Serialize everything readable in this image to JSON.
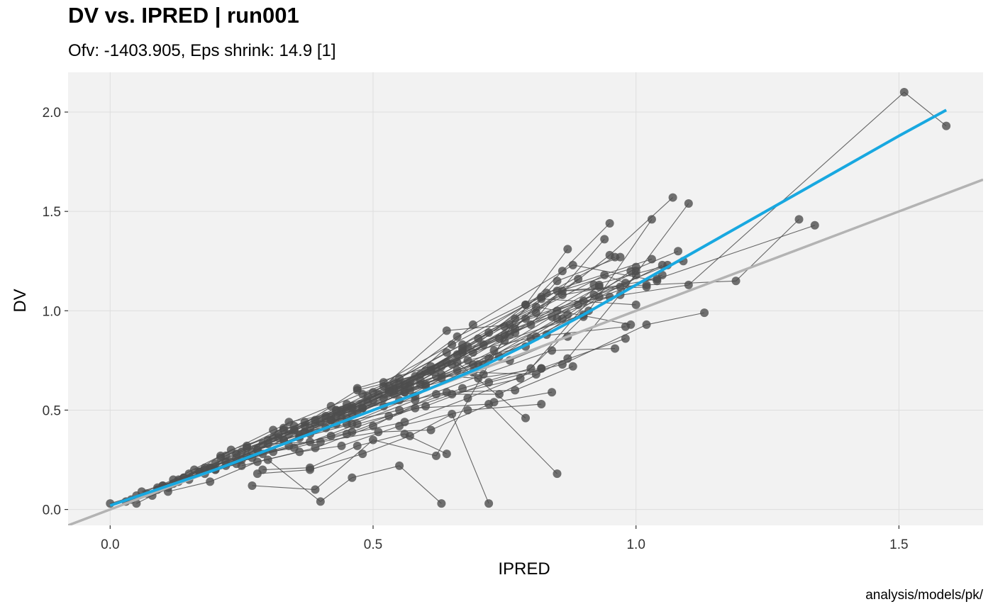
{
  "chart_data": {
    "type": "scatter",
    "title": "DV vs. IPRED | run001",
    "subtitle": "Ofv: -1403.905, Eps shrink: 14.9 [1]",
    "caption": "analysis/models/pk/",
    "xlabel": "IPRED",
    "ylabel": "DV",
    "xlim": [
      -0.08,
      1.66
    ],
    "ylim": [
      -0.08,
      2.2
    ],
    "xticks": [
      0.0,
      0.5,
      1.0,
      1.5
    ],
    "xtick_labels": [
      "0.0",
      "0.5",
      "1.0",
      "1.5"
    ],
    "yticks": [
      0.0,
      0.5,
      1.0,
      1.5,
      2.0
    ],
    "ytick_labels": [
      "0.0",
      "0.5",
      "1.0",
      "1.5",
      "2.0"
    ],
    "grid": true,
    "colors": {
      "panel": "#f2f2f2",
      "grid": "#dedede",
      "points": "#4d4d4d",
      "identity_line": "#b3b3b3",
      "smooth_line": "#18a8e0"
    },
    "identity_line": {
      "x": [
        -0.08,
        1.66
      ],
      "y": [
        -0.08,
        1.66
      ]
    },
    "smooth": {
      "x": [
        0.0,
        0.1,
        0.2,
        0.3,
        0.4,
        0.5,
        0.6,
        0.7,
        0.8,
        0.9,
        1.0,
        1.1,
        1.2,
        1.3,
        1.4,
        1.5,
        1.59
      ],
      "y": [
        0.02,
        0.11,
        0.2,
        0.3,
        0.4,
        0.5,
        0.6,
        0.71,
        0.84,
        0.98,
        1.13,
        1.28,
        1.43,
        1.58,
        1.73,
        1.88,
        2.01
      ]
    },
    "individuals": [
      {
        "x": [
          0.0,
          0.05,
          0.12,
          0.21,
          0.31,
          0.42,
          0.55,
          0.67,
          0.79,
          0.87
        ],
        "y": [
          0.03,
          0.07,
          0.15,
          0.27,
          0.4,
          0.52,
          0.66,
          0.83,
          1.03,
          1.31
        ]
      },
      {
        "x": [
          0.05,
          0.11,
          0.2,
          0.3,
          0.39,
          0.52,
          0.64,
          0.76,
          0.86,
          0.95
        ],
        "y": [
          0.03,
          0.11,
          0.2,
          0.33,
          0.45,
          0.62,
          0.9,
          0.93,
          1.2,
          1.44
        ]
      },
      {
        "x": [
          0.04,
          0.1,
          0.19,
          0.28,
          0.38,
          0.48,
          0.6,
          0.72,
          0.85,
          0.93
        ],
        "y": [
          0.05,
          0.12,
          0.21,
          0.3,
          0.38,
          0.51,
          0.62,
          0.76,
          0.96,
          1.13
        ]
      },
      {
        "x": [
          0.07,
          0.13,
          0.22,
          0.33,
          0.42,
          0.55,
          0.66,
          0.8,
          0.91,
          1.03
        ],
        "y": [
          0.08,
          0.14,
          0.24,
          0.35,
          0.47,
          0.55,
          0.7,
          0.86,
          1.0,
          1.46
        ]
      },
      {
        "x": [
          0.06,
          0.14,
          0.25,
          0.35,
          0.46,
          0.57,
          0.69,
          0.81,
          0.95,
          1.07
        ],
        "y": [
          0.09,
          0.16,
          0.29,
          0.4,
          0.51,
          0.62,
          0.79,
          0.99,
          1.28,
          1.57
        ]
      },
      {
        "x": [
          0.08,
          0.15,
          0.24,
          0.36,
          0.45,
          0.58,
          0.7,
          0.83,
          0.97,
          1.1
        ],
        "y": [
          0.07,
          0.15,
          0.23,
          0.37,
          0.43,
          0.57,
          0.73,
          0.88,
          1.08,
          1.54
        ]
      },
      {
        "x": [
          0.09,
          0.17,
          0.27,
          0.37,
          0.47,
          0.6,
          0.73,
          0.86,
          0.99,
          1.08
        ],
        "y": [
          0.11,
          0.19,
          0.29,
          0.39,
          0.49,
          0.63,
          0.8,
          0.96,
          1.2,
          1.3
        ]
      },
      {
        "x": [
          0.03,
          0.09,
          0.18,
          0.27,
          0.36,
          0.46,
          0.58,
          0.71,
          0.84,
          0.96
        ],
        "y": [
          0.04,
          0.1,
          0.18,
          0.26,
          0.36,
          0.43,
          0.55,
          0.68,
          0.8,
          0.81
        ]
      },
      {
        "x": [
          0.1,
          0.18,
          0.26,
          0.34,
          0.44,
          0.56,
          0.68,
          0.79,
          0.93,
          1.05
        ],
        "y": [
          0.12,
          0.21,
          0.31,
          0.38,
          0.46,
          0.59,
          0.75,
          0.82,
          1.07,
          1.23
        ]
      },
      {
        "x": [
          0.12,
          0.2,
          0.29,
          0.38,
          0.47,
          0.6,
          0.72,
          0.86,
          1.02,
          1.13
        ],
        "y": [
          0.13,
          0.2,
          0.28,
          0.34,
          0.43,
          0.52,
          0.64,
          0.73,
          0.93,
          0.99
        ]
      },
      {
        "x": [
          0.11,
          0.19,
          0.28,
          0.39,
          0.5,
          0.62,
          0.74,
          0.87,
          1.0
        ],
        "y": [
          0.09,
          0.14,
          0.24,
          0.31,
          0.42,
          0.58,
          0.58,
          0.76,
          1.18
        ]
      },
      {
        "x": [
          0.13,
          0.22,
          0.31,
          0.42,
          0.53,
          0.65,
          0.78,
          0.9
        ],
        "y": [
          0.15,
          0.22,
          0.29,
          0.37,
          0.47,
          0.58,
          0.66,
          0.97
        ]
      },
      {
        "x": [
          0.15,
          0.24,
          0.33,
          0.43,
          0.55,
          0.67,
          0.8,
          0.92
        ],
        "y": [
          0.18,
          0.26,
          0.35,
          0.43,
          0.5,
          0.61,
          0.71,
          1.08
        ]
      },
      {
        "x": [
          0.14,
          0.23,
          0.32,
          0.41,
          0.52,
          0.64,
          0.77,
          0.88
        ],
        "y": [
          0.16,
          0.3,
          0.38,
          0.41,
          0.52,
          0.59,
          0.6,
          0.72
        ]
      },
      {
        "x": [
          0.16,
          0.26,
          0.35,
          0.45,
          0.56,
          0.68,
          0.82,
          0.98
        ],
        "y": [
          0.2,
          0.27,
          0.31,
          0.38,
          0.44,
          0.56,
          0.71,
          0.86
        ]
      },
      {
        "x": [
          0.18,
          0.28,
          0.37,
          0.48,
          0.59,
          0.71,
          0.85,
          0.97
        ],
        "y": [
          0.2,
          0.3,
          0.42,
          0.51,
          0.63,
          0.73,
          1.15,
          1.27
        ]
      },
      {
        "x": [
          0.17,
          0.25,
          0.34,
          0.44,
          0.54,
          0.63,
          0.75,
          0.89
        ],
        "y": [
          0.19,
          0.25,
          0.44,
          0.49,
          0.64,
          0.72,
          0.88,
          1.16
        ]
      },
      {
        "x": [
          0.19,
          0.29,
          0.4,
          0.51,
          0.61,
          0.73,
          0.84
        ],
        "y": [
          0.21,
          0.33,
          0.34,
          0.39,
          0.4,
          0.54,
          0.59
        ]
      },
      {
        "x": [
          0.2,
          0.3,
          0.41,
          0.52,
          0.63,
          0.76,
          0.87
        ],
        "y": [
          0.23,
          0.35,
          0.47,
          0.56,
          0.66,
          0.75,
          0.87
        ]
      },
      {
        "x": [
          0.21,
          0.31,
          0.43,
          0.54,
          0.66,
          0.79
        ],
        "y": [
          0.26,
          0.36,
          0.5,
          0.61,
          0.74,
          0.46
        ]
      },
      {
        "x": [
          0.22,
          0.33,
          0.45,
          0.56,
          0.69,
          0.81
        ],
        "y": [
          0.27,
          0.41,
          0.46,
          0.59,
          0.69,
          0.68
        ]
      },
      {
        "x": [
          0.23,
          0.34,
          0.46,
          0.58,
          0.72,
          0.85
        ],
        "y": [
          0.24,
          0.32,
          0.39,
          0.51,
          0.53,
          0.18
        ]
      },
      {
        "x": [
          0.24,
          0.35,
          0.47,
          0.59,
          0.7,
          0.82
        ],
        "y": [
          0.28,
          0.4,
          0.6,
          0.68,
          0.66,
          0.71
        ]
      },
      {
        "x": [
          0.26,
          0.37,
          0.49,
          0.61,
          0.75,
          0.9
        ],
        "y": [
          0.32,
          0.44,
          0.54,
          0.7,
          0.85,
          0.98
        ]
      },
      {
        "x": [
          0.25,
          0.36,
          0.44,
          0.55,
          0.68,
          0.82
        ],
        "y": [
          0.22,
          0.29,
          0.32,
          0.42,
          0.5,
          0.53
        ]
      },
      {
        "x": [
          0.27,
          0.39,
          0.5,
          0.62,
          0.77
        ],
        "y": [
          0.12,
          0.1,
          0.35,
          0.27,
          0.96
        ]
      },
      {
        "x": [
          0.28,
          0.38,
          0.48,
          0.57,
          0.65,
          0.72
        ],
        "y": [
          0.18,
          0.2,
          0.28,
          0.37,
          0.48,
          0.03
        ]
      },
      {
        "x": [
          0.3,
          0.4,
          0.46,
          0.55,
          0.63
        ],
        "y": [
          0.25,
          0.04,
          0.16,
          0.22,
          0.03
        ]
      },
      {
        "x": [
          0.29,
          0.38,
          0.47,
          0.56,
          0.64
        ],
        "y": [
          0.2,
          0.21,
          0.32,
          0.38,
          0.28
        ]
      },
      {
        "x": [
          0.32,
          0.42,
          0.53,
          0.62,
          0.74,
          0.87
        ],
        "y": [
          0.36,
          0.45,
          0.59,
          0.67,
          0.77,
          0.98
        ]
      },
      {
        "x": [
          0.33,
          0.43,
          0.54,
          0.64,
          0.77,
          0.93
        ],
        "y": [
          0.4,
          0.5,
          0.58,
          0.74,
          0.89,
          1.12
        ]
      },
      {
        "x": [
          0.35,
          0.45,
          0.56,
          0.67,
          0.8,
          0.94
        ],
        "y": [
          0.42,
          0.53,
          0.62,
          0.79,
          0.93,
          1.36
        ]
      },
      {
        "x": [
          0.36,
          0.46,
          0.57,
          0.69,
          0.84,
          1.0
        ],
        "y": [
          0.37,
          0.48,
          0.6,
          0.73,
          0.97,
          1.2
        ]
      },
      {
        "x": [
          0.37,
          0.48,
          0.59,
          0.71,
          0.86,
          1.02
        ],
        "y": [
          0.39,
          0.51,
          0.65,
          0.83,
          1.1,
          1.12
        ]
      },
      {
        "x": [
          0.38,
          0.49,
          0.61,
          0.74,
          0.89,
          1.05
        ],
        "y": [
          0.41,
          0.57,
          0.7,
          0.86,
          1.03,
          1.18
        ]
      },
      {
        "x": [
          0.39,
          0.5,
          0.63,
          0.76,
          0.92,
          1.09
        ],
        "y": [
          0.43,
          0.55,
          0.68,
          0.88,
          1.13,
          1.25
        ]
      },
      {
        "x": [
          0.4,
          0.51,
          0.65,
          0.79,
          0.96
        ],
        "y": [
          0.44,
          0.58,
          0.73,
          1.03,
          1.27
        ]
      },
      {
        "x": [
          0.41,
          0.53,
          0.66,
          0.81,
          0.98
        ],
        "y": [
          0.46,
          0.6,
          0.78,
          0.87,
          0.92
        ]
      },
      {
        "x": [
          0.42,
          0.54,
          0.67,
          0.82,
          1.0
        ],
        "y": [
          0.45,
          0.6,
          0.81,
          1.06,
          1.03
        ]
      },
      {
        "x": [
          0.43,
          0.55,
          0.68,
          0.85,
          1.02,
          1.19,
          1.31
        ],
        "y": [
          0.47,
          0.63,
          0.82,
          1.1,
          1.13,
          1.15,
          1.46
        ]
      },
      {
        "x": [
          0.44,
          0.57,
          0.7,
          0.86,
          1.04,
          1.34
        ],
        "y": [
          0.5,
          0.64,
          0.86,
          1.08,
          1.16,
          1.43
        ]
      },
      {
        "x": [
          0.45,
          0.58,
          0.72,
          0.9,
          1.1,
          1.51,
          1.59
        ],
        "y": [
          0.51,
          0.67,
          0.89,
          1.05,
          1.13,
          2.1,
          1.93
        ]
      },
      {
        "x": [
          0.46,
          0.6,
          0.75,
          0.94,
          0.98
        ],
        "y": [
          0.52,
          0.7,
          0.92,
          1.18,
          1.14
        ]
      },
      {
        "x": [
          0.47,
          0.61,
          0.77,
          0.95
        ],
        "y": [
          0.61,
          0.72,
          0.91,
          1.07
        ]
      },
      {
        "x": [
          0.48,
          0.62,
          0.79,
          0.97
        ],
        "y": [
          0.58,
          0.71,
          0.96,
          1.12
        ]
      },
      {
        "x": [
          0.52,
          0.65,
          0.82,
          1.0
        ],
        "y": [
          0.64,
          0.83,
          1.07,
          1.22
        ]
      },
      {
        "x": [
          0.5,
          0.64,
          0.81,
          0.99
        ],
        "y": [
          0.59,
          0.79,
          1.02,
          0.93
        ]
      },
      {
        "x": [
          0.53,
          0.66,
          0.83,
          1.03
        ],
        "y": [
          0.62,
          0.87,
          1.09,
          1.26
        ]
      },
      {
        "x": [
          0.55,
          0.67,
          0.85,
          1.06
        ],
        "y": [
          0.6,
          0.8,
          1.0,
          1.23
        ]
      },
      {
        "x": [
          0.56,
          0.69,
          0.88,
          1.04
        ],
        "y": [
          0.63,
          0.93,
          1.23,
          1.15
        ]
      }
    ]
  }
}
